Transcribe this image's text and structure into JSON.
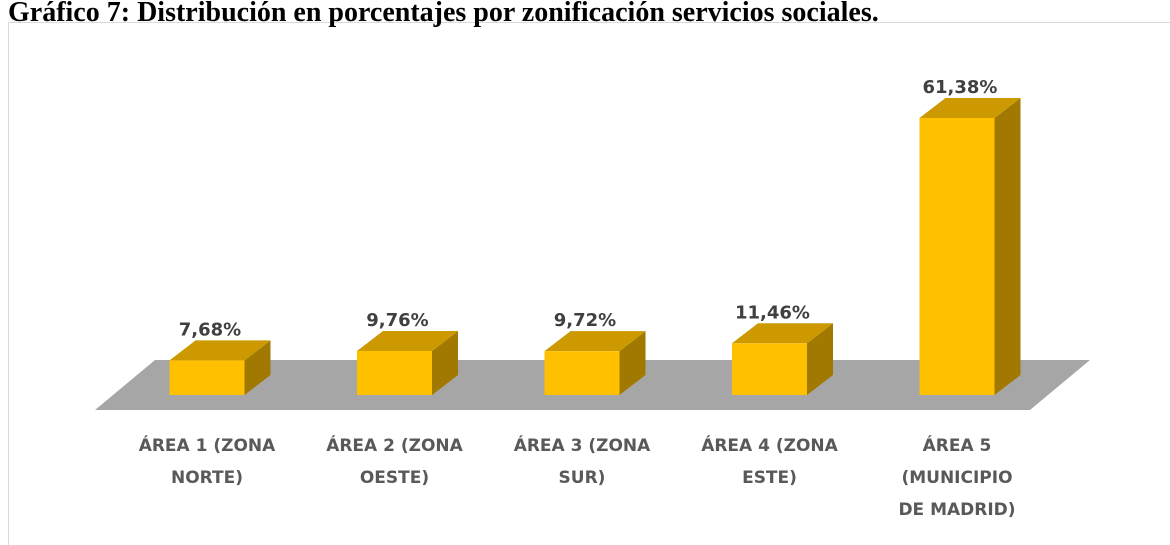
{
  "chart_data": {
    "type": "bar3d",
    "title": "Gráfico 7: Distribución en porcentajes por zonificación servicios sociales.",
    "categories": [
      "ÁREA 1 (ZONA NORTE)",
      "ÁREA 2 (ZONA OESTE)",
      "ÁREA 3 (ZONA SUR)",
      "ÁREA 4 (ZONA ESTE)",
      "ÁREA 5 (MUNICIPIO DE MADRID)"
    ],
    "values": [
      7.68,
      9.76,
      9.72,
      11.46,
      61.38
    ],
    "value_labels": [
      "7,68%",
      "9,76%",
      "9,72%",
      "11,46%",
      "61,38%"
    ],
    "color": "#ffc000"
  }
}
